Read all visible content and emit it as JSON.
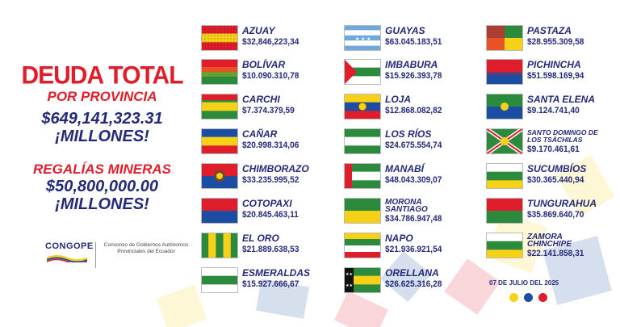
{
  "left": {
    "title_line1": "DEUDA TOTAL",
    "title_line2": "POR PROVINCIA",
    "total_amount": "$649,141,323.31",
    "total_unit": "¡MILLONES!",
    "royalties_label": "REGALÍAS MINERAS",
    "royalties_amount": "$50,800,000.00",
    "royalties_unit": "¡MILLONES!"
  },
  "logo": {
    "brand": "CONGOPE",
    "description": "Consorcio de Gobiernos Autónomos Provinciales del Ecuador"
  },
  "date": "07 DE JULIO DEL 2025",
  "colors": {
    "red": "#e01e2b",
    "navy": "#242a78",
    "yellow": "#f7d117",
    "blue": "#1b4ea3"
  },
  "provinces": [
    {
      "name": "AZUAY",
      "amount": "$32,846,223,34"
    },
    {
      "name": "BOLÍVAR",
      "amount": "$10.090.310,78"
    },
    {
      "name": "CARCHI",
      "amount": "$7.374.379,59"
    },
    {
      "name": "CAÑAR",
      "amount": "$20.998.314,06"
    },
    {
      "name": "CHIMBORAZO",
      "amount": "$33.235.995,52"
    },
    {
      "name": "COTOPAXI",
      "amount": "$20.845.463,11"
    },
    {
      "name": "EL ORO",
      "amount": "$21.889.638,53"
    },
    {
      "name": "ESMERALDAS",
      "amount": "$15.927.666,67"
    },
    {
      "name": "GUAYAS",
      "amount": "$63.045.183,51"
    },
    {
      "name": "IMBABURA",
      "amount": "$15.926.393,78"
    },
    {
      "name": "LOJA",
      "amount": "$12.868.082,82"
    },
    {
      "name": "LOS RÍOS",
      "amount": "$24.675.554,74"
    },
    {
      "name": "MANABÍ",
      "amount": "$48.043.309,07"
    },
    {
      "name": "MORONA SANTIAGO",
      "amount": "$34.786.947,48"
    },
    {
      "name": "NAPO",
      "amount": "$21.936.921,54"
    },
    {
      "name": "ORELLANA",
      "amount": "$26.625.316,28"
    },
    {
      "name": "PASTAZA",
      "amount": "$28.955.309,58"
    },
    {
      "name": "PICHINCHA",
      "amount": "$51.598.169,94"
    },
    {
      "name": "SANTA ELENA",
      "amount": "$9.124.741,40"
    },
    {
      "name": "SANTO DOMINGO DE LOS TSÁCHILAS",
      "amount": "$9.170.461,61"
    },
    {
      "name": "SUCUMBÍOS",
      "amount": "$30.365.440,94"
    },
    {
      "name": "TUNGURAHUA",
      "amount": "$35.869.640,70"
    },
    {
      "name": "ZAMORA CHINCHIPE",
      "amount": "$22.141.858,31"
    }
  ]
}
